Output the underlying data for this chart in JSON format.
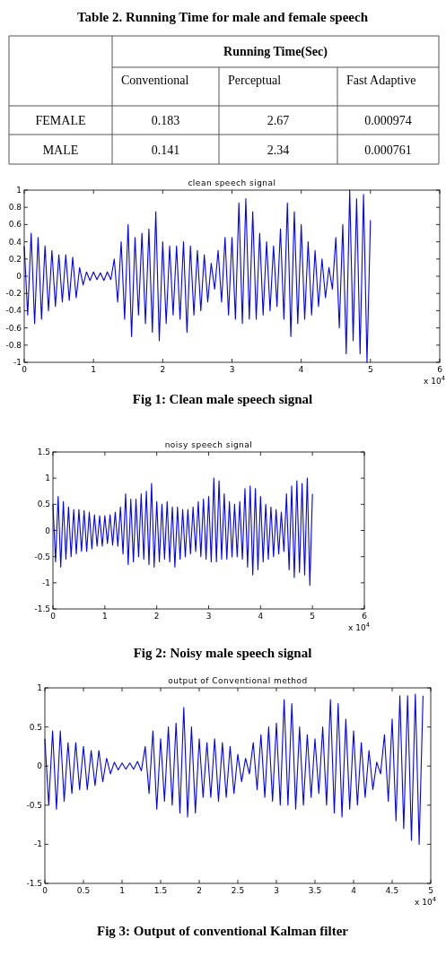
{
  "chart_data": [
    {
      "type": "heatmap",
      "data_labels": true,
      "title": "Table 2. Running Time for male and female speech",
      "subtitle": "Running Time(Sec)",
      "categories": [
        "Conventional",
        "Perceptual",
        "Fast Adaptive"
      ],
      "y_categories": [
        "FEMALE",
        "MALE"
      ],
      "cells": [
        [
          0.183,
          2.67,
          0.000974
        ],
        [
          0.141,
          2.34,
          0.000761
        ]
      ]
    },
    {
      "type": "line",
      "title": "clean speech signal",
      "xlim": [
        0,
        6
      ],
      "ylim": [
        -1,
        1
      ],
      "xticks": [
        0,
        1,
        2,
        3,
        4,
        5,
        6
      ],
      "yticks": [
        -1,
        -0.8,
        -0.6,
        -0.4,
        -0.2,
        0,
        0.2,
        0.4,
        0.6,
        0.8,
        1
      ],
      "annotations": [
        "x 10$^{4}$",
        "Fig 1: Clean male speech signal"
      ],
      "series": [
        {
          "color": "#0000ff",
          "x": [
            0,
            0.05,
            0.1,
            0.15,
            0.2,
            0.25,
            0.3,
            0.35,
            0.4,
            0.45,
            0.5,
            0.55,
            0.6,
            0.65,
            0.7,
            0.75,
            0.8,
            0.85,
            0.9,
            0.95,
            1,
            1.05,
            1.1,
            1.15,
            1.2,
            1.25,
            1.3,
            1.35,
            1.4,
            1.45,
            1.5,
            1.55,
            1.6,
            1.65,
            1.7,
            1.75,
            1.8,
            1.85,
            1.9,
            1.95,
            2,
            2.05,
            2.1,
            2.15,
            2.2,
            2.25,
            2.3,
            2.35,
            2.4,
            2.45,
            2.5,
            2.55,
            2.6,
            2.65,
            2.7,
            2.75,
            2.8,
            2.85,
            2.9,
            2.95,
            3,
            3.05,
            3.1,
            3.15,
            3.2,
            3.25,
            3.3,
            3.35,
            3.4,
            3.45,
            3.5,
            3.55,
            3.6,
            3.65,
            3.7,
            3.75,
            3.8,
            3.85,
            3.9,
            3.95,
            4,
            4.05,
            4.1,
            4.15,
            4.2,
            4.25,
            4.3,
            4.35,
            4.4,
            4.45,
            4.5,
            4.55,
            4.6,
            4.65,
            4.7,
            4.75,
            4.8,
            4.85,
            4.9,
            4.95,
            5
          ],
          "values": [
            0.35,
            -0.45,
            0.5,
            -0.55,
            0.45,
            -0.5,
            0.35,
            -0.4,
            0.3,
            -0.35,
            0.25,
            -0.3,
            0.25,
            -0.28,
            0.22,
            -0.25,
            0.1,
            -0.1,
            0.05,
            -0.05,
            0.05,
            -0.04,
            0.04,
            -0.05,
            0.05,
            -0.04,
            0.2,
            -0.3,
            0.4,
            -0.5,
            0.6,
            -0.7,
            0.45,
            -0.45,
            0.5,
            -0.55,
            0.55,
            -0.65,
            0.75,
            -0.75,
            0.4,
            -0.55,
            0.35,
            -0.45,
            0.35,
            -0.5,
            0.4,
            -0.65,
            0.35,
            -0.45,
            0.3,
            -0.4,
            0.25,
            -0.3,
            0.15,
            -0.15,
            0.3,
            -0.3,
            0.45,
            -0.45,
            0.45,
            -0.5,
            0.85,
            -0.55,
            0.9,
            -0.5,
            0.75,
            -0.5,
            0.5,
            -0.45,
            0.4,
            -0.4,
            0.35,
            -0.35,
            0.55,
            -0.5,
            0.85,
            -0.7,
            0.75,
            -0.55,
            0.6,
            -0.5,
            0.4,
            -0.45,
            0.3,
            -0.35,
            0.2,
            -0.25,
            0.1,
            -0.15,
            0.45,
            -0.6,
            0.6,
            -0.9,
            1,
            -0.75,
            0.9,
            -0.9,
            0.95,
            -1,
            0.65
          ]
        }
      ]
    },
    {
      "type": "line",
      "title": "noisy speech signal",
      "xlim": [
        0,
        6
      ],
      "ylim": [
        -1.5,
        1.5
      ],
      "xticks": [
        0,
        1,
        2,
        3,
        4,
        5,
        6
      ],
      "yticks": [
        -1.5,
        -1,
        -0.5,
        0,
        0.5,
        1,
        1.5
      ],
      "annotations": [
        "x 10$^{4}$",
        "Fig 2: Noisy male speech signal"
      ],
      "series": [
        {
          "color": "#0000ff",
          "x": [
            0,
            0.05,
            0.1,
            0.15,
            0.2,
            0.25,
            0.3,
            0.35,
            0.4,
            0.45,
            0.5,
            0.55,
            0.6,
            0.65,
            0.7,
            0.75,
            0.8,
            0.85,
            0.9,
            0.95,
            1,
            1.05,
            1.1,
            1.15,
            1.2,
            1.25,
            1.3,
            1.35,
            1.4,
            1.45,
            1.5,
            1.55,
            1.6,
            1.65,
            1.7,
            1.75,
            1.8,
            1.85,
            1.9,
            1.95,
            2,
            2.05,
            2.1,
            2.15,
            2.2,
            2.25,
            2.3,
            2.35,
            2.4,
            2.45,
            2.5,
            2.55,
            2.6,
            2.65,
            2.7,
            2.75,
            2.8,
            2.85,
            2.9,
            2.95,
            3,
            3.05,
            3.1,
            3.15,
            3.2,
            3.25,
            3.3,
            3.35,
            3.4,
            3.45,
            3.5,
            3.55,
            3.6,
            3.65,
            3.7,
            3.75,
            3.8,
            3.85,
            3.9,
            3.95,
            4,
            4.05,
            4.1,
            4.15,
            4.2,
            4.25,
            4.3,
            4.35,
            4.4,
            4.45,
            4.5,
            4.55,
            4.6,
            4.65,
            4.7,
            4.75,
            4.8,
            4.85,
            4.9,
            4.95,
            5
          ],
          "values": [
            0.5,
            -0.6,
            0.65,
            -0.7,
            0.55,
            -0.55,
            0.45,
            -0.5,
            0.4,
            -0.45,
            0.4,
            -0.4,
            0.38,
            -0.4,
            0.35,
            -0.35,
            0.3,
            -0.3,
            0.28,
            -0.3,
            0.28,
            -0.25,
            0.3,
            -0.28,
            0.35,
            -0.3,
            0.45,
            -0.45,
            0.7,
            -0.65,
            0.6,
            -0.6,
            0.6,
            -0.5,
            0.7,
            -0.55,
            0.75,
            -0.65,
            0.9,
            -0.7,
            0.55,
            -0.6,
            0.5,
            -0.55,
            0.55,
            -0.6,
            0.45,
            -0.7,
            0.45,
            -0.55,
            0.4,
            -0.5,
            0.4,
            -0.45,
            0.45,
            -0.4,
            0.55,
            -0.5,
            0.6,
            -0.55,
            0.65,
            -0.6,
            1,
            -0.6,
            0.95,
            -0.55,
            0.7,
            -0.55,
            0.55,
            -0.5,
            0.5,
            -0.5,
            0.55,
            -0.55,
            0.8,
            -0.7,
            0.85,
            -0.85,
            0.8,
            -0.75,
            0.65,
            -0.6,
            0.5,
            -0.55,
            0.45,
            -0.5,
            0.4,
            -0.45,
            0.35,
            -0.4,
            0.7,
            -0.75,
            0.85,
            -0.9,
            0.95,
            -0.8,
            0.9,
            -0.85,
            1,
            -1.05,
            0.7
          ]
        }
      ]
    },
    {
      "type": "line",
      "title": "output of Conventional method",
      "xlim": [
        0,
        5
      ],
      "ylim": [
        -1.5,
        1
      ],
      "xticks": [
        0,
        0.5,
        1,
        1.5,
        2,
        2.5,
        3,
        3.5,
        4,
        4.5,
        5
      ],
      "yticks": [
        -1.5,
        -1,
        -0.5,
        0,
        0.5,
        1
      ],
      "annotations": [
        "x 10$^{4}$",
        "Fig 3: Output of conventional Kalman filter"
      ],
      "series": [
        {
          "color": "#0000ff",
          "x": [
            0,
            0.05,
            0.1,
            0.15,
            0.2,
            0.25,
            0.3,
            0.35,
            0.4,
            0.45,
            0.5,
            0.55,
            0.6,
            0.65,
            0.7,
            0.75,
            0.8,
            0.85,
            0.9,
            0.95,
            1,
            1.05,
            1.1,
            1.15,
            1.2,
            1.25,
            1.3,
            1.35,
            1.4,
            1.45,
            1.5,
            1.55,
            1.6,
            1.65,
            1.7,
            1.75,
            1.8,
            1.85,
            1.9,
            1.95,
            2,
            2.05,
            2.1,
            2.15,
            2.2,
            2.25,
            2.3,
            2.35,
            2.4,
            2.45,
            2.5,
            2.55,
            2.6,
            2.65,
            2.7,
            2.75,
            2.8,
            2.85,
            2.9,
            2.95,
            3,
            3.05,
            3.1,
            3.15,
            3.2,
            3.25,
            3.3,
            3.35,
            3.4,
            3.45,
            3.5,
            3.55,
            3.6,
            3.65,
            3.7,
            3.75,
            3.8,
            3.85,
            3.9,
            3.95,
            4,
            4.05,
            4.1,
            4.15,
            4.2,
            4.25,
            4.3,
            4.35,
            4.4,
            4.45,
            4.5,
            4.55,
            4.6,
            4.65,
            4.7,
            4.75,
            4.8,
            4.85,
            4.9
          ],
          "values": [
            0.35,
            -0.5,
            0.45,
            -0.55,
            0.45,
            -0.45,
            0.3,
            -0.35,
            0.3,
            -0.3,
            0.25,
            -0.3,
            0.2,
            -0.25,
            0.2,
            -0.2,
            0.1,
            -0.1,
            0.05,
            -0.05,
            0.04,
            -0.04,
            0.04,
            -0.04,
            0.06,
            -0.06,
            0.25,
            -0.35,
            0.45,
            -0.55,
            0.35,
            -0.45,
            0.5,
            -0.5,
            0.55,
            -0.6,
            0.75,
            -0.65,
            0.5,
            -0.6,
            0.35,
            -0.4,
            0.3,
            -0.4,
            0.35,
            -0.45,
            0.3,
            -0.4,
            0.25,
            -0.35,
            0.15,
            -0.2,
            0.1,
            -0.1,
            0.3,
            -0.3,
            0.4,
            -0.4,
            0.5,
            -0.45,
            0.55,
            -0.5,
            0.85,
            -0.5,
            0.8,
            -0.55,
            0.5,
            -0.5,
            0.4,
            -0.4,
            0.35,
            -0.35,
            0.5,
            -0.5,
            0.85,
            -0.6,
            0.8,
            -0.65,
            0.6,
            -0.55,
            0.45,
            -0.5,
            0.3,
            -0.4,
            0.2,
            -0.3,
            0.05,
            -0.1,
            0.4,
            -0.45,
            0.6,
            -0.7,
            0.9,
            -0.8,
            0.9,
            -0.95,
            0.92,
            -1,
            0.9
          ]
        }
      ]
    }
  ]
}
